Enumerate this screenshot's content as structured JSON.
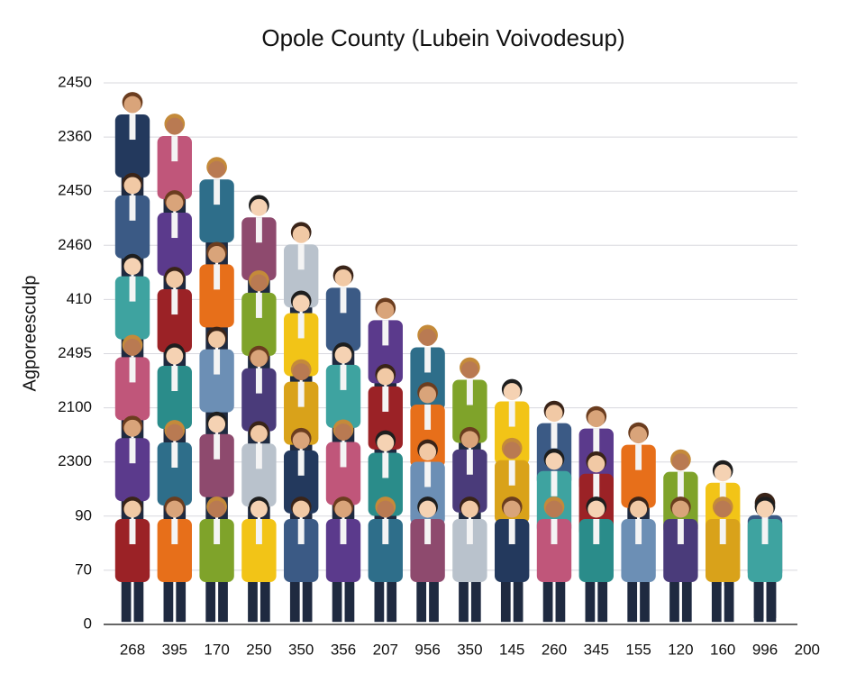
{
  "chart_data": {
    "type": "pictograph",
    "title": "Opole County (Lubein Voivodesup)",
    "y_label": "Agporeescudp",
    "categories": [
      "268",
      "395",
      "170",
      "250",
      "350",
      "356",
      "207",
      "956",
      "350",
      "145",
      "260",
      "345",
      "155",
      "120",
      "160",
      "996",
      "200"
    ],
    "values": [
      9.8,
      9.4,
      8.6,
      7.9,
      7.4,
      6.6,
      6.0,
      5.5,
      4.9,
      4.5,
      4.1,
      4.0,
      3.7,
      3.2,
      3.0,
      2.4,
      null
    ],
    "ylim": [
      0,
      10
    ],
    "yticks": [
      0,
      {
        "value": 1,
        "label": "70"
      },
      {
        "value": 2,
        "label": "90"
      },
      {
        "value": 3,
        "label": "2300"
      },
      {
        "value": 4,
        "label": "2100"
      },
      {
        "value": 5,
        "label": "2495"
      },
      {
        "value": 6,
        "label": "410"
      },
      {
        "value": 7,
        "label": "2460"
      },
      {
        "value": 8,
        "label": "2450"
      },
      {
        "value": 9,
        "label": "2360"
      },
      {
        "value": 10,
        "label": "2450"
      }
    ],
    "grid": true
  }
}
